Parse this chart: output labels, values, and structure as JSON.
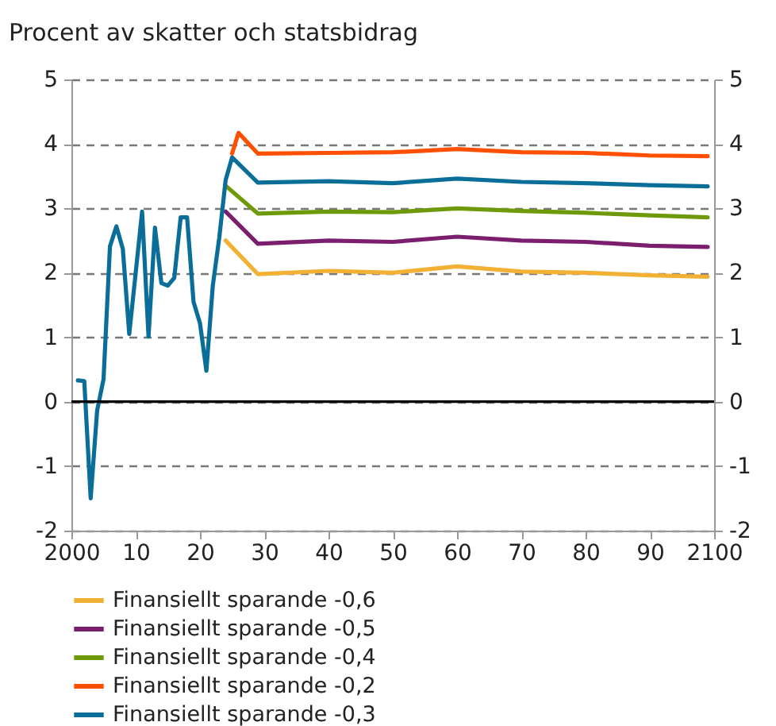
{
  "chart_data": {
    "type": "line",
    "ylabel": "Procent av skatter och statsbidrag",
    "xlim": [
      2000,
      2100
    ],
    "xticks": [
      {
        "value": 2000,
        "label": "2000"
      },
      {
        "value": 2010,
        "label": "10"
      },
      {
        "value": 2020,
        "label": "20"
      },
      {
        "value": 2030,
        "label": "30"
      },
      {
        "value": 2040,
        "label": "40"
      },
      {
        "value": 2050,
        "label": "50"
      },
      {
        "value": 2060,
        "label": "60"
      },
      {
        "value": 2070,
        "label": "70"
      },
      {
        "value": 2080,
        "label": "80"
      },
      {
        "value": 2090,
        "label": "90"
      },
      {
        "value": 2100,
        "label": "2100"
      }
    ],
    "ylim": [
      -2,
      5
    ],
    "yticks": [
      -2,
      -1,
      0,
      1,
      2,
      3,
      4,
      5
    ],
    "y2lim": [
      -2,
      5
    ],
    "y2ticks": [
      -2,
      -1,
      0,
      1,
      2,
      3,
      4,
      5
    ],
    "grid": "y",
    "legend": "bottom",
    "ref_lines": [
      {
        "axis": "y2",
        "value": 0,
        "color": "#000000",
        "line_style": "solid"
      }
    ],
    "series": [
      {
        "name": "Finansiellt sparande -0,6",
        "color": "#f2b134",
        "x": [
          2024,
          2029,
          2040,
          2050,
          2060,
          2070,
          2080,
          2090,
          2099
        ],
        "values": [
          2.5,
          1.98,
          2.03,
          2.0,
          2.1,
          2.02,
          2.0,
          1.96,
          1.94
        ]
      },
      {
        "name": "Finansiellt sparande -0,5",
        "color": "#7b1e6e",
        "x": [
          2024,
          2029,
          2040,
          2050,
          2060,
          2070,
          2080,
          2090,
          2099
        ],
        "values": [
          2.95,
          2.45,
          2.5,
          2.48,
          2.56,
          2.5,
          2.48,
          2.42,
          2.4
        ]
      },
      {
        "name": "Finansiellt sparande -0,4",
        "color": "#6e9a0a",
        "x": [
          2024,
          2029,
          2040,
          2050,
          2060,
          2070,
          2080,
          2090,
          2099
        ],
        "values": [
          3.35,
          2.92,
          2.95,
          2.94,
          3.0,
          2.96,
          2.93,
          2.89,
          2.86
        ]
      },
      {
        "name": "Finansiellt sparande -0,2",
        "color": "#ff4f00",
        "x": [
          2025,
          2026,
          2029,
          2040,
          2050,
          2060,
          2070,
          2080,
          2090,
          2099
        ],
        "values": [
          3.85,
          4.17,
          3.85,
          3.86,
          3.87,
          3.92,
          3.87,
          3.86,
          3.82,
          3.81
        ]
      },
      {
        "name": "Finansiellt sparande -0,3",
        "color": "#0b6e99",
        "x": [
          2001,
          2002,
          2003,
          2004,
          2005,
          2006,
          2007,
          2008,
          2009,
          2010,
          2011,
          2012,
          2013,
          2014,
          2015,
          2016,
          2017,
          2018,
          2019,
          2020,
          2021,
          2022,
          2023,
          2024,
          2025,
          2029,
          2040,
          2050,
          2060,
          2070,
          2080,
          2090,
          2099
        ],
        "values": [
          0.33,
          0.32,
          -1.5,
          -0.14,
          0.35,
          2.41,
          2.72,
          2.37,
          1.05,
          2.0,
          2.95,
          1.01,
          2.7,
          1.84,
          1.8,
          1.92,
          2.86,
          2.86,
          1.55,
          1.22,
          0.48,
          1.8,
          2.54,
          3.44,
          3.79,
          3.4,
          3.42,
          3.39,
          3.46,
          3.41,
          3.39,
          3.36,
          3.34
        ]
      }
    ]
  }
}
